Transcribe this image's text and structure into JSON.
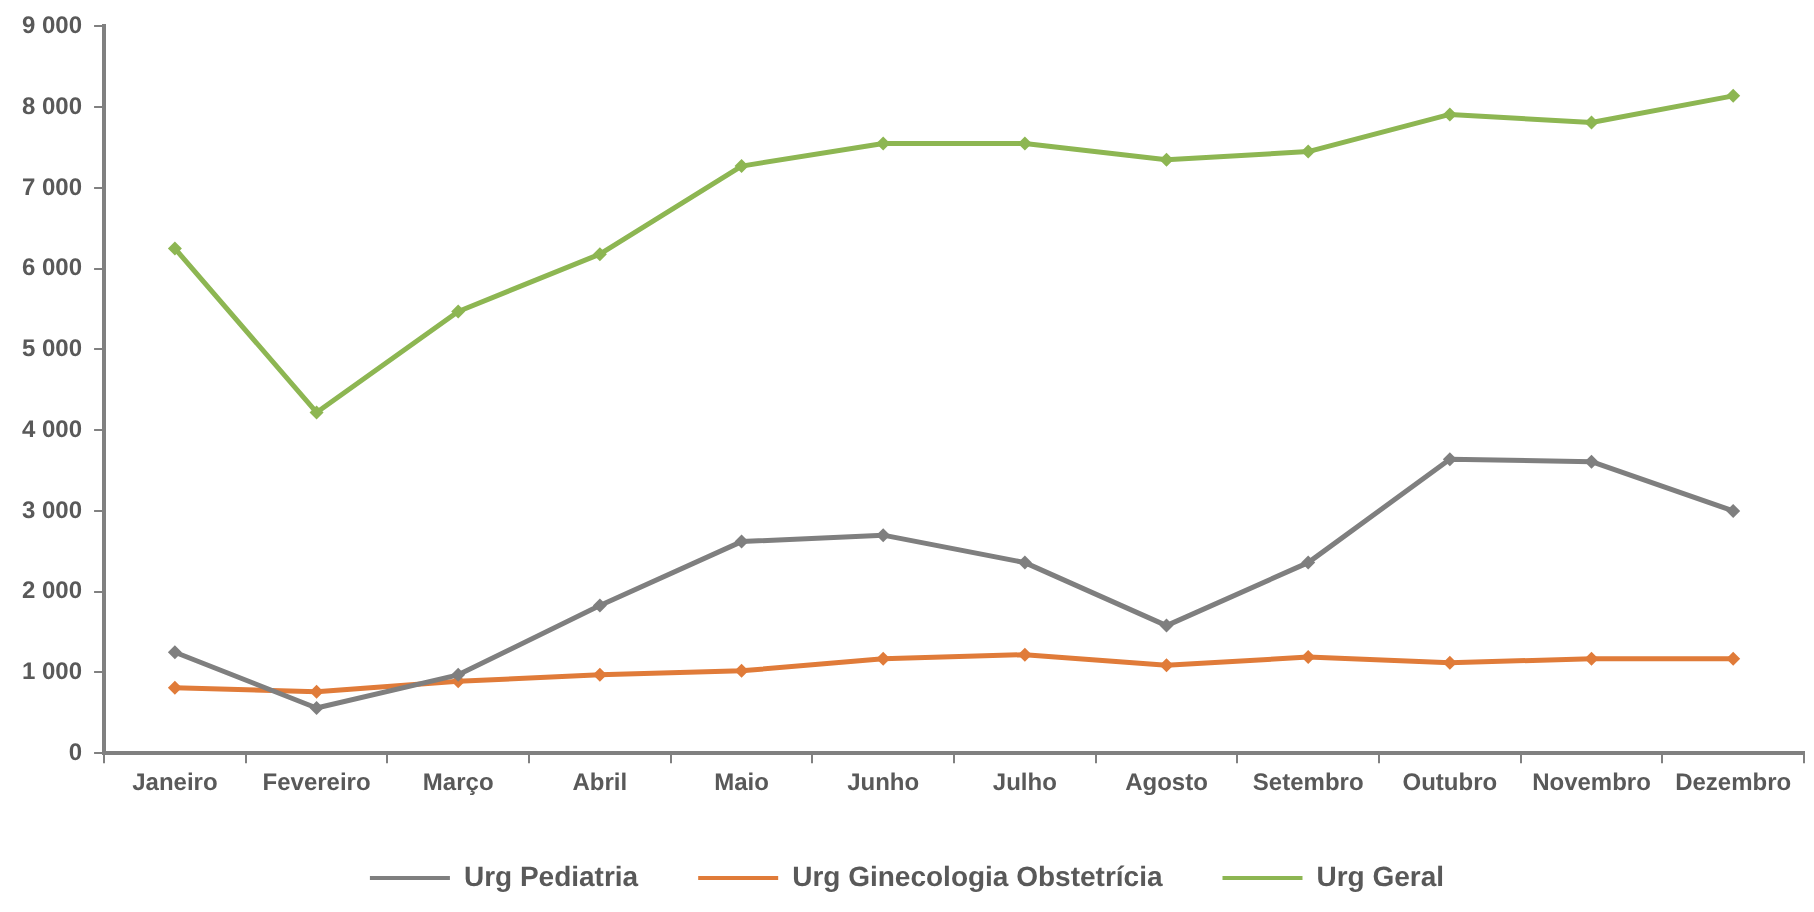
{
  "chart_data": {
    "type": "line",
    "categories": [
      "Janeiro",
      "Fevereiro",
      "Março",
      "Abril",
      "Maio",
      "Junho",
      "Julho",
      "Agosto",
      "Setembro",
      "Outubro",
      "Novembro",
      "Dezembro"
    ],
    "series": [
      {
        "name": "Urg Pediatria",
        "color": "#7f7f7f",
        "values": [
          1250,
          560,
          970,
          1830,
          2620,
          2700,
          2360,
          1580,
          2360,
          3640,
          3610,
          3000
        ]
      },
      {
        "name": "Urg Ginecologia Obstetrícia",
        "color": "#e07b39",
        "values": [
          810,
          760,
          890,
          970,
          1020,
          1170,
          1220,
          1090,
          1190,
          1120,
          1170,
          1170
        ]
      },
      {
        "name": "Urg Geral",
        "color": "#8db652",
        "values": [
          6250,
          4220,
          5470,
          6180,
          7270,
          7550,
          7550,
          7350,
          7450,
          7910,
          7810,
          8140
        ]
      }
    ],
    "ylim": [
      0,
      9000
    ],
    "yticks": [
      0,
      {
        "value": 1000,
        "label": "1 000"
      },
      {
        "value": 2000,
        "label": "2 000"
      },
      {
        "value": 3000,
        "label": "3 000"
      },
      {
        "value": 4000,
        "label": "4 000"
      },
      {
        "value": 5000,
        "label": "5 000"
      },
      {
        "value": 6000,
        "label": "6 000"
      },
      {
        "value": 7000,
        "label": "7 000"
      },
      {
        "value": 8000,
        "label": "8 000"
      },
      {
        "value": 9000,
        "label": "9 000"
      }
    ],
    "grid": false,
    "legend": "bottom",
    "marker": "diamond",
    "line_style": "solid"
  }
}
